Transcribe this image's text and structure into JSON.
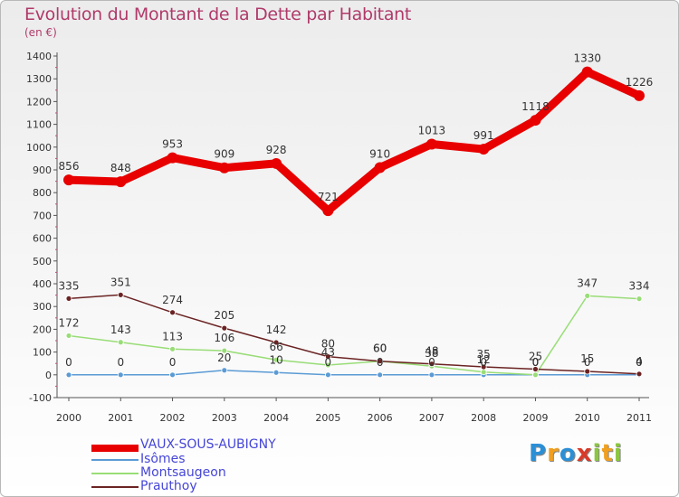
{
  "title": "Evolution du Montant de la Dette par Habitant",
  "subtitle": "(en €)",
  "chart_data": {
    "type": "line",
    "title": "Evolution du Montant de la Dette par Habitant",
    "subtitle": "(en €)",
    "ylim": [
      -100,
      1400
    ],
    "yticks": [
      -100,
      0,
      100,
      200,
      300,
      400,
      500,
      600,
      700,
      800,
      900,
      1000,
      1100,
      1200,
      1300,
      1400
    ],
    "x": [
      "2000",
      "2001",
      "2002",
      "2003",
      "2004",
      "2005",
      "2006",
      "2007",
      "2008",
      "2009",
      "2010",
      "2011"
    ],
    "grid": false,
    "legend_position": "bottom-left",
    "series": [
      {
        "name": "VAUX-SOUS-AUBIGNY",
        "color": "#e80000",
        "values": [
          856,
          848,
          953,
          909,
          928,
          721,
          910,
          1013,
          991,
          1118,
          1330,
          1226
        ],
        "labels": [
          "856",
          "848",
          "953",
          "909",
          "928",
          "721",
          "910",
          "1013",
          "991",
          "1118",
          "1330",
          "1226"
        ]
      },
      {
        "name": "Isômes",
        "color": "#5b9bd5",
        "values": [
          0,
          0,
          0,
          20,
          10,
          0,
          0,
          0,
          0,
          0,
          0,
          0
        ],
        "labels": [
          "0",
          "0",
          "0",
          "20",
          "10",
          "0",
          "0",
          "0",
          "0",
          "0",
          "0",
          "0"
        ]
      },
      {
        "name": "Montsaugeon",
        "color": "#99dd77",
        "values": [
          172,
          143,
          113,
          106,
          66,
          43,
          60,
          38,
          12,
          0,
          347,
          334
        ],
        "labels": [
          "172",
          "143",
          "113",
          "106",
          "66",
          "43",
          "60",
          "38",
          "12",
          "0",
          "347",
          "334"
        ]
      },
      {
        "name": "Prauthoy",
        "color": "#6b2323",
        "values": [
          335,
          351,
          274,
          205,
          142,
          80,
          60,
          48,
          35,
          25,
          15,
          4
        ],
        "labels": [
          "335",
          "351",
          "274",
          "205",
          "142",
          "80",
          "60",
          "48",
          "35",
          "25",
          "15",
          "4"
        ]
      }
    ]
  },
  "brand": {
    "letters": [
      "P",
      "r",
      "o",
      "x",
      "i",
      "t",
      "i"
    ],
    "colors": [
      "#2b8fd6",
      "#f0a020",
      "#2b8fd6",
      "#d83a2a",
      "#8cc63f",
      "#f0a020",
      "#8cc63f"
    ]
  }
}
